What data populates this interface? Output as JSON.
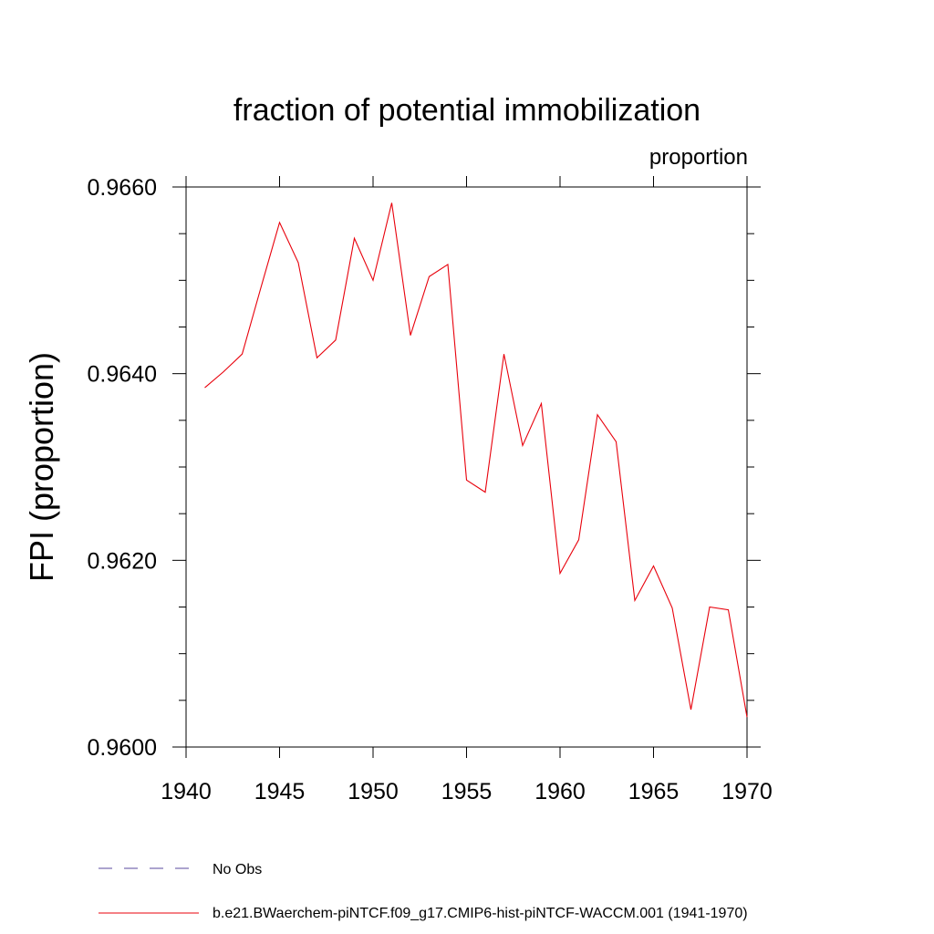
{
  "chart_data": {
    "type": "line",
    "title": "fraction of potential immobilization",
    "units_label": "proportion",
    "ylabel": "FPI  (proportion)",
    "xlabel": "",
    "xlim": [
      1940,
      1970
    ],
    "ylim": [
      0.96,
      0.966
    ],
    "x_ticks": [
      1940,
      1945,
      1950,
      1955,
      1960,
      1965,
      1970
    ],
    "x_tick_labels": [
      "1940",
      "1945",
      "1950",
      "1955",
      "1960",
      "1965",
      "1970"
    ],
    "y_ticks": [
      0.96,
      0.962,
      0.964,
      0.966
    ],
    "y_tick_labels": [
      "0.9600",
      "0.9620",
      "0.9640",
      "0.9660"
    ],
    "y_minor_step": 0.0005,
    "grid": false,
    "legend_position": "bottom-left",
    "series": [
      {
        "name": "b.e21.BWaerchem-piNTCF.f09_g17.CMIP6-hist-piNTCF-WACCM.001 (1941-1970)",
        "color": "#e8000b",
        "style": "solid",
        "x": [
          1941,
          1942,
          1943,
          1944,
          1945,
          1946,
          1947,
          1948,
          1949,
          1950,
          1951,
          1952,
          1953,
          1954,
          1955,
          1956,
          1957,
          1958,
          1959,
          1960,
          1961,
          1962,
          1963,
          1964,
          1965,
          1966,
          1967,
          1968,
          1969,
          1970
        ],
        "y": [
          0.96385,
          0.96402,
          0.96421,
          0.96492,
          0.96562,
          0.96519,
          0.96417,
          0.96436,
          0.96545,
          0.965,
          0.96583,
          0.96441,
          0.96504,
          0.96517,
          0.96286,
          0.96273,
          0.96421,
          0.96323,
          0.96368,
          0.96186,
          0.96222,
          0.96356,
          0.96327,
          0.96157,
          0.96194,
          0.96149,
          0.9604,
          0.9615,
          0.96147,
          0.96032
        ]
      }
    ],
    "legend": [
      {
        "label": "No Obs",
        "color": "#5a4a9c",
        "style": "dashed"
      },
      {
        "label": "b.e21.BWaerchem-piNTCF.f09_g17.CMIP6-hist-piNTCF-WACCM.001 (1941-1970)",
        "color": "#e8000b",
        "style": "solid"
      }
    ]
  }
}
